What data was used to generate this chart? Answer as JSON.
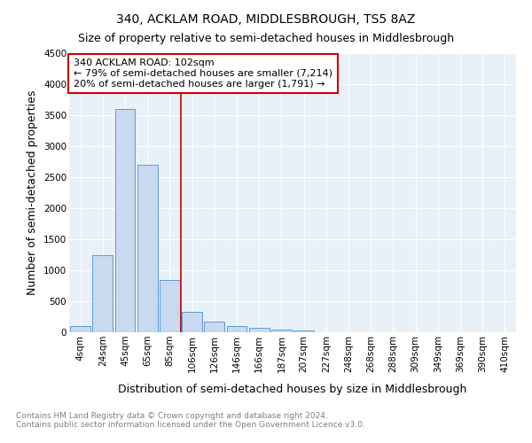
{
  "title": "340, ACKLAM ROAD, MIDDLESBROUGH, TS5 8AZ",
  "subtitle": "Size of property relative to semi-detached houses in Middlesbrough",
  "xlabel": "Distribution of semi-detached houses by size in Middlesbrough",
  "ylabel": "Number of semi-detached properties",
  "categories": [
    "4sqm",
    "24sqm",
    "45sqm",
    "65sqm",
    "85sqm",
    "106sqm",
    "126sqm",
    "146sqm",
    "166sqm",
    "187sqm",
    "207sqm",
    "227sqm",
    "248sqm",
    "268sqm",
    "288sqm",
    "309sqm",
    "349sqm",
    "369sqm",
    "390sqm",
    "410sqm"
  ],
  "values": [
    100,
    1250,
    3600,
    2700,
    850,
    330,
    170,
    95,
    65,
    50,
    30,
    0,
    0,
    0,
    0,
    0,
    0,
    0,
    0,
    0
  ],
  "bar_color": "#c9d9f0",
  "bar_edge_color": "#5b9bd5",
  "vline_color": "#cc0000",
  "vline_position": 5,
  "ylim": [
    0,
    4500
  ],
  "yticks": [
    0,
    500,
    1000,
    1500,
    2000,
    2500,
    3000,
    3500,
    4000,
    4500
  ],
  "annotation_line1": "340 ACKLAM ROAD: 102sqm",
  "annotation_line2": "← 79% of semi-detached houses are smaller (7,214)",
  "annotation_line3": "20% of semi-detached houses are larger (1,791) →",
  "annotation_box_color": "#cc0000",
  "background_color": "#e8f0f8",
  "footer_text": "Contains HM Land Registry data © Crown copyright and database right 2024.\nContains public sector information licensed under the Open Government Licence v3.0.",
  "title_fontsize": 10,
  "subtitle_fontsize": 9,
  "axis_label_fontsize": 9,
  "tick_fontsize": 7.5,
  "annotation_fontsize": 8,
  "footer_fontsize": 6.5
}
